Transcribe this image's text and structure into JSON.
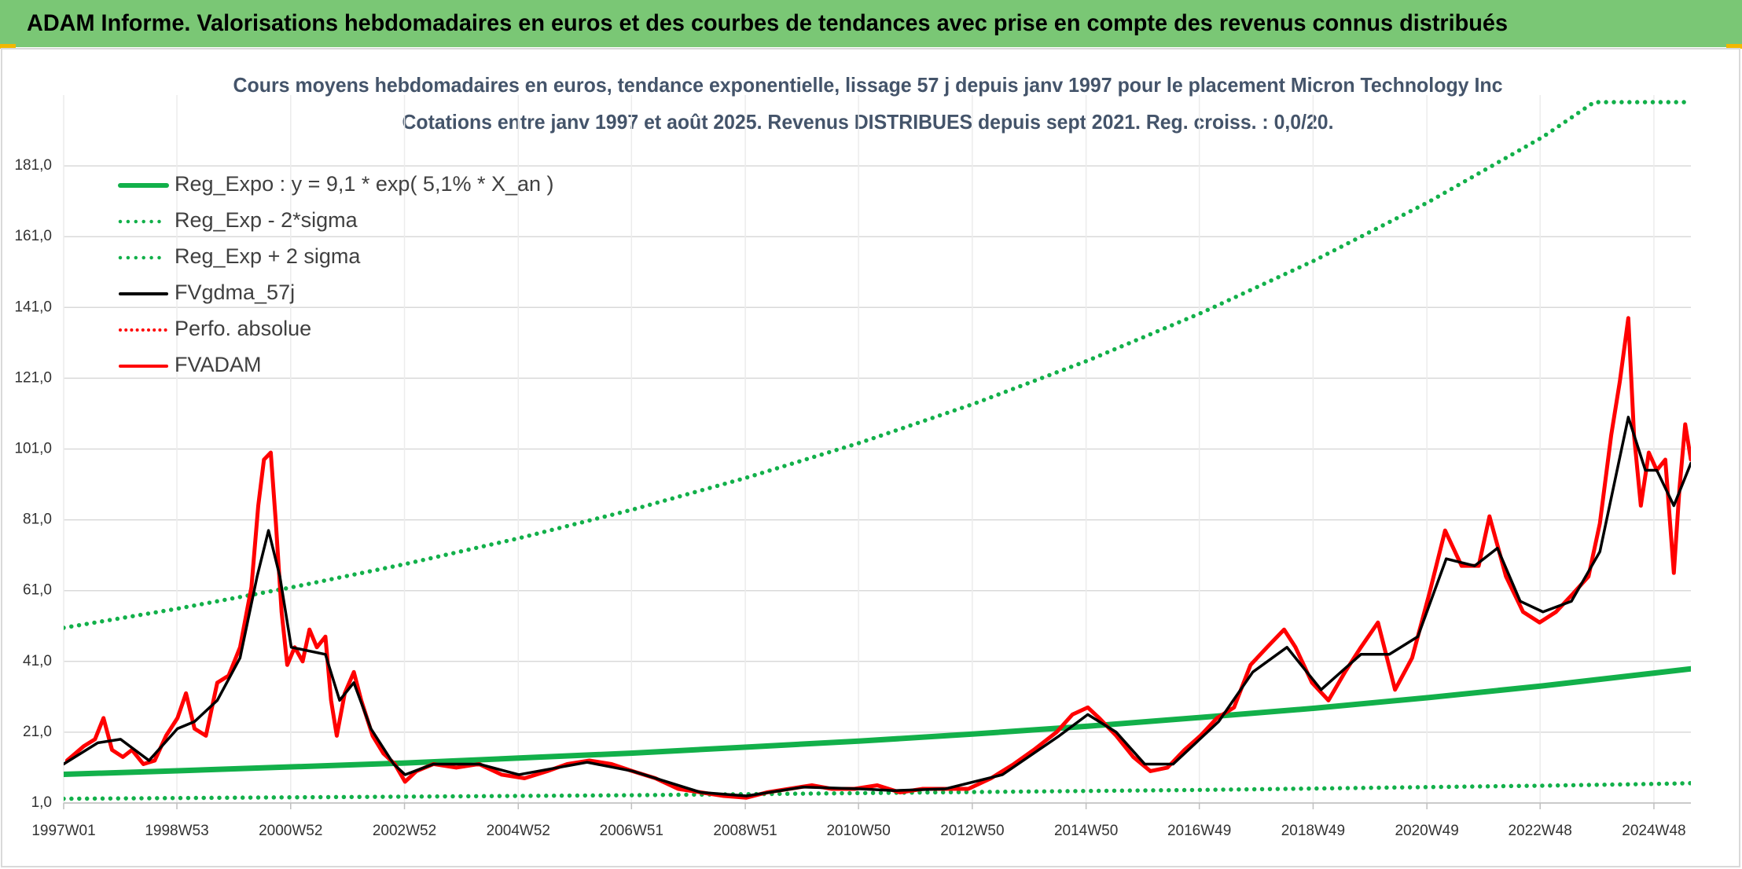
{
  "chart_data": {
    "type": "line",
    "header": "ADAM Informe. Valorisations hebdomadaires en euros et des courbes de tendances avec prise en compte des revenus connus distribués",
    "title": "Cours moyens hebdomadaires en euros, tendance exponentielle, lissage 57 j depuis janv 1997 pour le placement Micron Technology Inc",
    "subtitle": "Cotations entre janv 1997 et août 2025. Revenus DISTRIBUES depuis sept 2021. Reg. croiss. : 0,0/20.",
    "xlim": [
      1997,
      2025.6
    ],
    "xticks": [
      {
        "value": 1997,
        "label": "1997W01"
      },
      {
        "value": 1998.99,
        "label": "1998W53"
      },
      {
        "value": 2000.99,
        "label": "2000W52"
      },
      {
        "value": 2002.99,
        "label": "2002W52"
      },
      {
        "value": 2004.99,
        "label": "2004W52"
      },
      {
        "value": 2006.98,
        "label": "2006W51"
      },
      {
        "value": 2008.98,
        "label": "2008W51"
      },
      {
        "value": 2010.97,
        "label": "2010W50"
      },
      {
        "value": 2012.97,
        "label": "2012W50"
      },
      {
        "value": 2014.97,
        "label": "2014W50"
      },
      {
        "value": 2016.96,
        "label": "2016W49"
      },
      {
        "value": 2018.96,
        "label": "2018W49"
      },
      {
        "value": 2020.96,
        "label": "2020W49"
      },
      {
        "value": 2022.95,
        "label": "2022W48"
      },
      {
        "value": 2024.95,
        "label": "2024W48"
      }
    ],
    "ylim": [
      1,
      201
    ],
    "yticks": [
      {
        "value": 1,
        "label": "1,0"
      },
      {
        "value": 21,
        "label": "21,0"
      },
      {
        "value": 41,
        "label": "41,0"
      },
      {
        "value": 61,
        "label": "61,0"
      },
      {
        "value": 81,
        "label": "81,0"
      },
      {
        "value": 101,
        "label": "101,0"
      },
      {
        "value": 121,
        "label": "121,0"
      },
      {
        "value": 141,
        "label": "141,0"
      },
      {
        "value": 161,
        "label": "161,0"
      },
      {
        "value": 181,
        "label": "181,0"
      }
    ],
    "grid": true,
    "legend": "upper left",
    "series": [
      {
        "name": "Reg_Expo : y = 9,1 * exp( 5,1% *  X_an )",
        "color": "#12b04a",
        "style": "solid",
        "width": 7,
        "x": [
          1997,
          1999,
          2001,
          2003,
          2005,
          2007,
          2009,
          2011,
          2013,
          2015,
          2017,
          2019,
          2021,
          2023,
          2025,
          2025.6
        ],
        "values": [
          9.1,
          10.1,
          11.2,
          12.3,
          13.7,
          15.1,
          16.8,
          18.5,
          20.5,
          22.7,
          25.2,
          27.8,
          30.8,
          34.1,
          37.8,
          38.9
        ]
      },
      {
        "name": "Reg_Exp - 2*sigma",
        "color": "#12b04a",
        "style": "dotted",
        "width": 5.5,
        "x": [
          1997,
          1999,
          2001,
          2003,
          2005,
          2007,
          2009,
          2011,
          2013,
          2015,
          2017,
          2019,
          2021,
          2023,
          2025,
          2025.6
        ],
        "values": [
          2.2,
          2.4,
          2.6,
          2.8,
          3.0,
          3.2,
          3.5,
          3.8,
          4.1,
          4.4,
          4.7,
          5.1,
          5.5,
          5.9,
          6.4,
          6.6
        ]
      },
      {
        "name": "Reg_Exp + 2 sigma",
        "color": "#12b04a",
        "style": "dotted",
        "width": 5.5,
        "x": [
          1997,
          1999,
          2001,
          2003,
          2005,
          2007,
          2009,
          2011,
          2013,
          2015,
          2017,
          2019,
          2021,
          2023,
          2023.9,
          2025.6
        ],
        "values": [
          50.5,
          55.9,
          61.9,
          68.5,
          75.8,
          83.9,
          92.9,
          102.8,
          113.8,
          126.0,
          139.5,
          154.4,
          170.9,
          189.2,
          199,
          199
        ]
      },
      {
        "name": "FVgdma_57j",
        "color": "#000000",
        "style": "solid",
        "width": 3.5,
        "x": [
          1997.0,
          1997.6,
          1998.0,
          1998.5,
          1999.0,
          1999.3,
          1999.7,
          2000.1,
          2000.4,
          2000.6,
          2000.8,
          2001.0,
          2001.3,
          2001.6,
          2001.85,
          2002.1,
          2002.4,
          2002.8,
          2003.0,
          2003.5,
          2004.3,
          2005.0,
          2006.2,
          2007.0,
          2008.2,
          2009.0,
          2010.0,
          2011.0,
          2011.6,
          2012.5,
          2013.5,
          2014.5,
          2015.0,
          2015.5,
          2016.0,
          2016.5,
          2017.3,
          2017.9,
          2018.5,
          2019.1,
          2019.8,
          2020.3,
          2020.8,
          2021.3,
          2021.8,
          2022.2,
          2022.6,
          2023.0,
          2023.5,
          2024.0,
          2024.5,
          2024.8,
          2025.0,
          2025.3,
          2025.6
        ],
        "values": [
          12,
          18,
          19,
          13,
          22,
          24,
          30,
          42,
          65,
          78,
          65,
          45,
          44,
          43,
          30,
          35,
          22,
          12,
          9,
          12,
          12,
          9,
          12.5,
          10,
          4,
          3,
          5.5,
          5,
          4.5,
          5,
          9,
          20,
          26,
          21,
          12,
          12,
          24,
          38,
          45,
          33,
          43,
          43,
          48,
          70,
          68,
          73,
          58,
          55,
          58,
          72,
          110,
          95,
          95,
          85,
          97
        ]
      },
      {
        "name": "Perfo. absolue",
        "color": "#ff0000",
        "style": "dotted",
        "width": 4,
        "x": [],
        "values": []
      },
      {
        "name": "FVADAM",
        "color": "#ff0000",
        "style": "solid",
        "width": 5,
        "x": [
          1997.06,
          1997.35,
          1997.55,
          1997.7,
          1997.85,
          1998.04,
          1998.2,
          1998.4,
          1998.6,
          1998.8,
          1999.0,
          1999.15,
          1999.3,
          1999.5,
          1999.7,
          1999.9,
          2000.1,
          2000.3,
          2000.42,
          2000.52,
          2000.64,
          2000.73,
          2000.83,
          2000.93,
          2001.06,
          2001.2,
          2001.32,
          2001.45,
          2001.6,
          2001.7,
          2001.8,
          2001.94,
          2002.1,
          2002.23,
          2002.43,
          2002.62,
          2002.82,
          2003.0,
          2003.2,
          2003.5,
          2003.9,
          2004.3,
          2004.7,
          2005.1,
          2005.5,
          2005.85,
          2006.24,
          2006.63,
          2007.0,
          2007.4,
          2007.8,
          2008.2,
          2008.6,
          2009.0,
          2009.36,
          2009.75,
          2010.15,
          2010.5,
          2010.9,
          2011.3,
          2011.7,
          2012.1,
          2012.5,
          2012.9,
          2013.3,
          2013.7,
          2014.05,
          2014.45,
          2014.73,
          2015.0,
          2015.2,
          2015.5,
          2015.8,
          2016.1,
          2016.4,
          2016.7,
          2016.98,
          2017.27,
          2017.57,
          2017.86,
          2018.15,
          2018.45,
          2018.65,
          2018.94,
          2019.23,
          2019.52,
          2019.8,
          2020.1,
          2020.4,
          2020.7,
          2021.0,
          2021.28,
          2021.57,
          2021.87,
          2022.06,
          2022.35,
          2022.65,
          2022.94,
          2023.23,
          2023.52,
          2023.8,
          2024.0,
          2024.2,
          2024.35,
          2024.5,
          2024.6,
          2024.72,
          2024.86,
          2025.0,
          2025.15,
          2025.3,
          2025.4,
          2025.5,
          2025.6
        ],
        "values": [
          13,
          17,
          19,
          25,
          16,
          14,
          16,
          12,
          13,
          20,
          25,
          32,
          22,
          20,
          35,
          37,
          45,
          62,
          85,
          98,
          100,
          80,
          55,
          40,
          45,
          41,
          50,
          45,
          48,
          30,
          20,
          32,
          38,
          30,
          20,
          15,
          12,
          7,
          10,
          12,
          11,
          12,
          9,
          8,
          10,
          12,
          13,
          12,
          10,
          8,
          5,
          4,
          3,
          2.5,
          4,
          5,
          6,
          5,
          5,
          6,
          4,
          5,
          5,
          5,
          8,
          12,
          16,
          21,
          26,
          28,
          25,
          20,
          14,
          10,
          11,
          16,
          20,
          25,
          28,
          40,
          45,
          50,
          45,
          35,
          30,
          38,
          45,
          52,
          33,
          42,
          60,
          78,
          68,
          68,
          82,
          65,
          55,
          52,
          55,
          60,
          65,
          80,
          105,
          120,
          138,
          105,
          85,
          100,
          95,
          98,
          66,
          90,
          108,
          98
        ]
      }
    ]
  }
}
